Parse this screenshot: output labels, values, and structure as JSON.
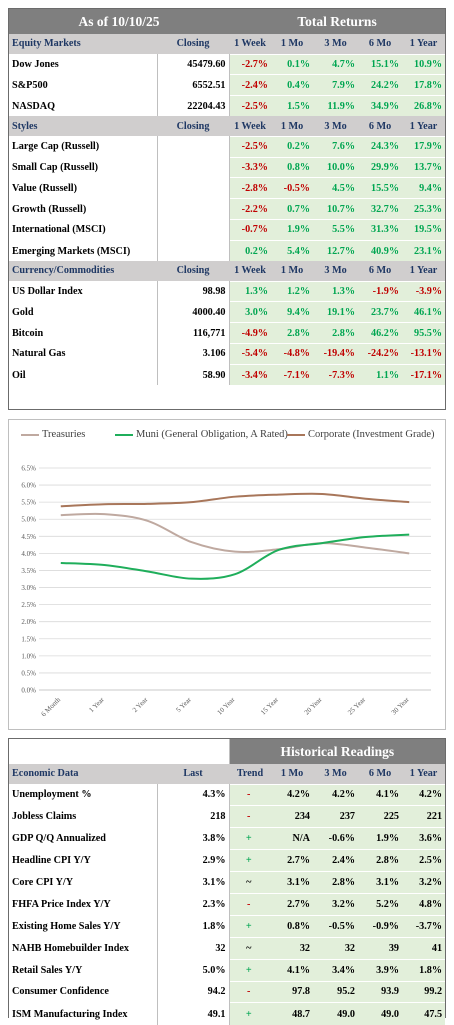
{
  "top": {
    "as_of": "As of  10/10/25",
    "title": "Total Returns"
  },
  "equity": {
    "header": [
      "Equity Markets",
      "Closing",
      "1 Week",
      "1 Mo",
      "3 Mo",
      "6 Mo",
      "1 Year"
    ],
    "rows": [
      {
        "name": "Dow Jones",
        "closing": "45479.60",
        "vals": [
          "-2.7%",
          "0.1%",
          "4.7%",
          "15.1%",
          "10.9%"
        ]
      },
      {
        "name": "S&P500",
        "closing": "6552.51",
        "vals": [
          "-2.4%",
          "0.4%",
          "7.9%",
          "24.2%",
          "17.8%"
        ]
      },
      {
        "name": "NASDAQ",
        "closing": "22204.43",
        "vals": [
          "-2.5%",
          "1.5%",
          "11.9%",
          "34.9%",
          "26.8%"
        ]
      }
    ]
  },
  "styles": {
    "header": [
      "Styles",
      "Closing",
      "1 Week",
      "1 Mo",
      "3 Mo",
      "6 Mo",
      "1 Year"
    ],
    "rows": [
      {
        "name": "Large Cap (Russell)",
        "closing": "",
        "vals": [
          "-2.5%",
          "0.2%",
          "7.6%",
          "24.3%",
          "17.9%"
        ]
      },
      {
        "name": "Small Cap (Russell)",
        "closing": "",
        "vals": [
          "-3.3%",
          "0.8%",
          "10.0%",
          "29.9%",
          "13.7%"
        ]
      },
      {
        "name": "Value (Russell)",
        "closing": "",
        "vals": [
          "-2.8%",
          "-0.5%",
          "4.5%",
          "15.5%",
          "9.4%"
        ]
      },
      {
        "name": "Growth (Russell)",
        "closing": "",
        "vals": [
          "-2.2%",
          "0.7%",
          "10.7%",
          "32.7%",
          "25.3%"
        ]
      },
      {
        "name": "International (MSCI)",
        "closing": "",
        "vals": [
          "-0.7%",
          "1.9%",
          "5.5%",
          "31.3%",
          "19.5%"
        ]
      },
      {
        "name": "Emerging Markets (MSCI)",
        "closing": "",
        "vals": [
          "0.2%",
          "5.4%",
          "12.7%",
          "40.9%",
          "23.1%"
        ]
      }
    ]
  },
  "currency": {
    "header": [
      "Currency/Commodities",
      "Closing",
      "1 Week",
      "1 Mo",
      "3 Mo",
      "6 Mo",
      "1 Year"
    ],
    "rows": [
      {
        "name": "US Dollar Index",
        "closing": "98.98",
        "vals": [
          "1.3%",
          "1.2%",
          "1.3%",
          "-1.9%",
          "-3.9%"
        ]
      },
      {
        "name": "Gold",
        "closing": "4000.40",
        "vals": [
          "3.0%",
          "9.4%",
          "19.1%",
          "23.7%",
          "46.1%"
        ]
      },
      {
        "name": "Bitcoin",
        "closing": "116,771",
        "vals": [
          "-4.9%",
          "2.8%",
          "2.8%",
          "46.2%",
          "95.5%"
        ]
      },
      {
        "name": "Natural Gas",
        "closing": "3.106",
        "vals": [
          "-5.4%",
          "-4.8%",
          "-19.4%",
          "-24.2%",
          "-13.1%"
        ]
      },
      {
        "name": "Oil",
        "closing": "58.90",
        "vals": [
          "-3.4%",
          "-7.1%",
          "-7.3%",
          "1.1%",
          "-17.1%"
        ]
      }
    ]
  },
  "colors": {
    "positive": "#00a651",
    "negative": "#c00000",
    "header_bg": "#7f7f7f",
    "section_bg": "#d0cece",
    "value_bg": "#e2efda"
  },
  "chart_data": {
    "type": "line",
    "categories": [
      "6 Month",
      "1 Year",
      "2 Year",
      "5 Year",
      "10 Year",
      "15 Year",
      "20 Year",
      "25 Year",
      "30 Year"
    ],
    "series": [
      {
        "name": "Treasuries",
        "color": "#bfa9a0",
        "values": [
          5.12,
          5.15,
          4.95,
          4.33,
          4.05,
          4.12,
          4.3,
          4.17,
          4.0
        ]
      },
      {
        "name": "Muni (General Obligation, A Rated)",
        "color": "#1fae5b",
        "values": [
          3.72,
          3.66,
          3.47,
          3.26,
          3.39,
          4.1,
          4.3,
          4.48,
          4.55
        ]
      },
      {
        "name": "Corporate (Investment Grade)",
        "color": "#a8765a",
        "values": [
          5.38,
          5.44,
          5.45,
          5.5,
          5.66,
          5.72,
          5.74,
          5.6,
          5.5
        ]
      }
    ],
    "ylim": [
      0,
      6.5
    ],
    "yticks": [
      "0.0%",
      "0.5%",
      "1.0%",
      "1.5%",
      "2.0%",
      "2.5%",
      "3.0%",
      "3.5%",
      "4.0%",
      "4.5%",
      "5.0%",
      "5.5%",
      "6.0%",
      "6.5%"
    ],
    "grid": true,
    "legend": "top"
  },
  "economic": {
    "section_title": "Historical Readings",
    "header": [
      "Economic Data",
      "Last",
      "Trend",
      "1 Mo",
      "3 Mo",
      "6 Mo",
      "1 Year"
    ],
    "rows": [
      {
        "name": "Unemployment %",
        "last": "4.3%",
        "trend": "-",
        "vals": [
          "4.2%",
          "4.2%",
          "4.1%",
          "4.2%"
        ]
      },
      {
        "name": "Jobless Claims",
        "last": "218",
        "trend": "-",
        "vals": [
          "234",
          "237",
          "225",
          "221"
        ]
      },
      {
        "name": "GDP Q/Q Annualized",
        "last": "3.8%",
        "trend": "+",
        "vals": [
          "N/A",
          "-0.6%",
          "1.9%",
          "3.6%"
        ]
      },
      {
        "name": "Headline CPI Y/Y",
        "last": "2.9%",
        "trend": "+",
        "vals": [
          "2.7%",
          "2.4%",
          "2.8%",
          "2.5%"
        ]
      },
      {
        "name": "Core CPI Y/Y",
        "last": "3.1%",
        "trend": "~",
        "vals": [
          "3.1%",
          "2.8%",
          "3.1%",
          "3.2%"
        ]
      },
      {
        "name": "FHFA Price Index Y/Y",
        "last": "2.3%",
        "trend": "-",
        "vals": [
          "2.7%",
          "3.2%",
          "5.2%",
          "4.8%"
        ]
      },
      {
        "name": "Existing Home Sales Y/Y",
        "last": "1.8%",
        "trend": "+",
        "vals": [
          "0.8%",
          "-0.5%",
          "-0.9%",
          "-3.7%"
        ]
      },
      {
        "name": "NAHB Homebuilder Index",
        "last": "32",
        "trend": "~",
        "vals": [
          "32",
          "32",
          "39",
          "41"
        ]
      },
      {
        "name": "Retail Sales Y/Y",
        "last": "5.0%",
        "trend": "+",
        "vals": [
          "4.1%",
          "3.4%",
          "3.9%",
          "1.8%"
        ]
      },
      {
        "name": "Consumer Confidence",
        "last": "94.2",
        "trend": "-",
        "vals": [
          "97.8",
          "95.2",
          "93.9",
          "99.2"
        ]
      },
      {
        "name": "ISM Manufacturing Index",
        "last": "49.1",
        "trend": "+",
        "vals": [
          "48.7",
          "49.0",
          "49.0",
          "47.5"
        ]
      }
    ]
  }
}
